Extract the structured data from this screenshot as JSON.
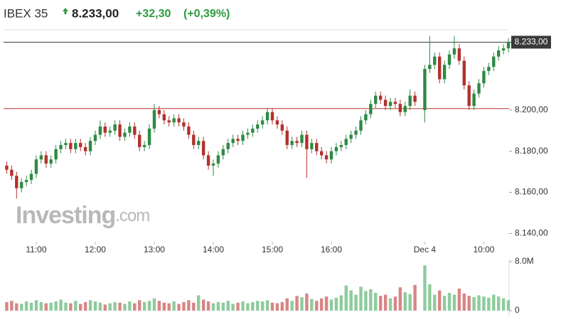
{
  "header": {
    "symbol": "IBEX 35",
    "price": "8.233,00",
    "change": "+32,30",
    "change_pct": "(+0,39%)"
  },
  "chart_data": {
    "type": "candlestick",
    "watermark": {
      "brand": "Investing",
      "suffix": ".com"
    },
    "x": [
      0,
      1,
      2,
      3,
      4,
      5,
      6,
      7,
      8,
      9,
      10,
      11,
      12,
      13,
      14,
      15,
      16,
      17,
      18,
      19,
      20,
      21,
      22,
      23,
      24,
      25,
      26,
      27,
      28,
      29,
      30,
      31,
      32,
      33,
      34,
      35,
      36,
      37,
      38,
      39,
      40,
      41,
      42,
      43,
      44,
      45,
      46,
      47,
      48,
      49,
      50,
      51,
      52,
      53,
      54,
      55,
      56,
      57,
      58,
      59,
      60,
      61,
      62,
      63,
      64,
      65,
      66,
      67,
      68,
      69,
      70,
      71,
      72,
      73,
      74,
      75,
      76,
      77,
      78,
      79,
      80,
      81,
      82,
      83,
      85,
      86,
      87,
      88,
      89,
      90,
      91,
      92,
      93,
      94,
      95,
      96,
      97,
      98,
      99,
      100,
      101,
      102
    ],
    "xlim": [
      -0.5,
      102.5
    ],
    "xticks": [
      {
        "value": 6,
        "label": "11:00"
      },
      {
        "value": 18,
        "label": "12:00"
      },
      {
        "value": 30,
        "label": "13:00"
      },
      {
        "value": 42,
        "label": "14:00"
      },
      {
        "value": 54,
        "label": "15:00"
      },
      {
        "value": 66,
        "label": "16:00"
      },
      {
        "value": 85,
        "label": "Dec 4"
      },
      {
        "value": 97,
        "label": "10:00"
      }
    ],
    "open": [
      8173,
      8171,
      8168,
      8162,
      8165,
      8166,
      8169,
      8176,
      8178,
      8174,
      8176,
      8181,
      8183,
      8184,
      8181,
      8184,
      8182,
      8180,
      8185,
      8188,
      8192,
      8189,
      8190,
      8193,
      8187,
      8189,
      8192,
      8188,
      8182,
      8183,
      8191,
      8200,
      8198,
      8195,
      8194,
      8196,
      8194,
      8192,
      8188,
      8183,
      8185,
      8178,
      8173,
      8174,
      8178,
      8181,
      8184,
      8186,
      8185,
      8188,
      8189,
      8191,
      8193,
      8195,
      8199,
      8195,
      8193,
      8190,
      8183,
      8185,
      8184,
      8188,
      8181,
      8184,
      8180,
      8178,
      8176,
      8180,
      8182,
      8183,
      8186,
      8188,
      8190,
      8195,
      8198,
      8203,
      8207,
      8205,
      8202,
      8204,
      8203,
      8199,
      8202,
      8207,
      8200,
      8220,
      8222,
      8226,
      8215,
      8222,
      8227,
      8230,
      8224,
      8212,
      8202,
      8208,
      8213,
      8219,
      8221,
      8226,
      8229,
      8230
    ],
    "high": [
      8175,
      8173,
      8170,
      8167,
      8168,
      8171,
      8178,
      8180,
      8180,
      8178,
      8183,
      8185,
      8186,
      8186,
      8186,
      8186,
      8184,
      8187,
      8190,
      8195,
      8194,
      8192,
      8195,
      8195,
      8191,
      8194,
      8194,
      8190,
      8185,
      8193,
      8203,
      8202,
      8200,
      8197,
      8198,
      8198,
      8196,
      8194,
      8190,
      8187,
      8187,
      8180,
      8176,
      8180,
      8183,
      8186,
      8188,
      8188,
      8190,
      8191,
      8193,
      8195,
      8197,
      8201,
      8201,
      8197,
      8195,
      8192,
      8187,
      8187,
      8190,
      8190,
      8186,
      8186,
      8182,
      8180,
      8182,
      8184,
      8185,
      8188,
      8190,
      8192,
      8197,
      8200,
      8205,
      8209,
      8209,
      8207,
      8206,
      8206,
      8205,
      8204,
      8210,
      8209,
      8222,
      8236,
      8228,
      8228,
      8224,
      8229,
      8236,
      8232,
      8226,
      8214,
      8210,
      8215,
      8221,
      8223,
      8228,
      8231,
      8232,
      8235
    ],
    "low": [
      8169,
      8166,
      8157,
      8160,
      8163,
      8164,
      8167,
      8174,
      8172,
      8172,
      8174,
      8179,
      8181,
      8179,
      8179,
      8180,
      8178,
      8178,
      8183,
      8186,
      8187,
      8187,
      8188,
      8185,
      8185,
      8187,
      8186,
      8180,
      8180,
      8181,
      8189,
      8196,
      8193,
      8192,
      8192,
      8192,
      8190,
      8186,
      8181,
      8181,
      8176,
      8171,
      8168,
      8172,
      8176,
      8179,
      8182,
      8183,
      8183,
      8186,
      8187,
      8189,
      8191,
      8193,
      8193,
      8191,
      8188,
      8181,
      8181,
      8182,
      8182,
      8167,
      8179,
      8178,
      8176,
      8174,
      8174,
      8178,
      8180,
      8181,
      8184,
      8186,
      8188,
      8193,
      8196,
      8201,
      8203,
      8200,
      8200,
      8201,
      8197,
      8197,
      8200,
      8202,
      8194,
      8218,
      8220,
      8213,
      8213,
      8220,
      8225,
      8222,
      8210,
      8200,
      8200,
      8206,
      8211,
      8217,
      8219,
      8224,
      8227,
      8228
    ],
    "close": [
      8171,
      8168,
      8162,
      8165,
      8166,
      8169,
      8176,
      8178,
      8174,
      8176,
      8181,
      8183,
      8184,
      8181,
      8184,
      8182,
      8180,
      8185,
      8188,
      8192,
      8189,
      8190,
      8193,
      8187,
      8189,
      8192,
      8188,
      8182,
      8183,
      8191,
      8200,
      8198,
      8195,
      8194,
      8196,
      8194,
      8192,
      8188,
      8183,
      8185,
      8178,
      8173,
      8174,
      8178,
      8181,
      8184,
      8186,
      8185,
      8188,
      8189,
      8191,
      8193,
      8195,
      8199,
      8195,
      8193,
      8190,
      8183,
      8185,
      8184,
      8188,
      8181,
      8184,
      8180,
      8178,
      8176,
      8180,
      8182,
      8183,
      8186,
      8188,
      8190,
      8195,
      8198,
      8203,
      8207,
      8205,
      8202,
      8204,
      8203,
      8199,
      8202,
      8207,
      8204,
      8220,
      8222,
      8226,
      8215,
      8222,
      8227,
      8230,
      8224,
      8212,
      8202,
      8208,
      8213,
      8219,
      8221,
      8226,
      8229,
      8230,
      8233
    ],
    "ylim": [
      8136,
      8239
    ],
    "yticks": [
      {
        "value": 8140,
        "label": "8.140,00"
      },
      {
        "value": 8160,
        "label": "8.160,00"
      },
      {
        "value": 8180,
        "label": "8.180,00"
      },
      {
        "value": 8200,
        "label": "8.200,00"
      }
    ],
    "up_color": "#2d8a45",
    "down_color": "#b3312c",
    "reference_lines": [
      {
        "value": 8233,
        "label": "8.233,00",
        "color": "#3a3a3a"
      },
      {
        "value": 8200.7,
        "color": "#c0392b"
      }
    ],
    "volume": {
      "values": [
        1400000,
        1600000,
        1200000,
        1100000,
        1500000,
        1300000,
        1700000,
        1400000,
        1200000,
        1300000,
        1500000,
        1800000,
        1300000,
        1200000,
        1600000,
        1100000,
        1400000,
        1700000,
        1500000,
        1300000,
        1000000,
        1200000,
        1400000,
        1300000,
        1100000,
        1500000,
        1200000,
        1700000,
        1400000,
        1600000,
        2000000,
        1600000,
        1300000,
        1200000,
        1500000,
        1100000,
        1400000,
        1700000,
        1300000,
        2500000,
        1800000,
        1500000,
        1200000,
        1400000,
        1300000,
        1600000,
        1100000,
        1300000,
        1500000,
        1200000,
        1400000,
        1600000,
        1500000,
        1700000,
        1300000,
        1200000,
        1400000,
        2000000,
        1600000,
        2400000,
        2200000,
        2800000,
        1900000,
        1600000,
        2000000,
        2300000,
        1800000,
        2100000,
        2500000,
        4100000,
        3300000,
        2600000,
        3900000,
        3200000,
        3500000,
        2900000,
        2400000,
        2600000,
        2000000,
        2300000,
        3800000,
        3000000,
        2700000,
        4200000,
        7400000,
        4300000,
        2600000,
        3300000,
        2400000,
        2900000,
        2600000,
        3600000,
        2800000,
        2400000,
        2200000,
        2500000,
        2300000,
        2100000,
        2600000,
        2300000,
        2000000,
        1700000
      ],
      "ylim": [
        0,
        8000000
      ],
      "yticks": [
        0,
        {
          "value": 8000000,
          "label": "8.0M"
        }
      ],
      "up_color": "#8ecb9c",
      "down_color": "#d98585"
    }
  }
}
